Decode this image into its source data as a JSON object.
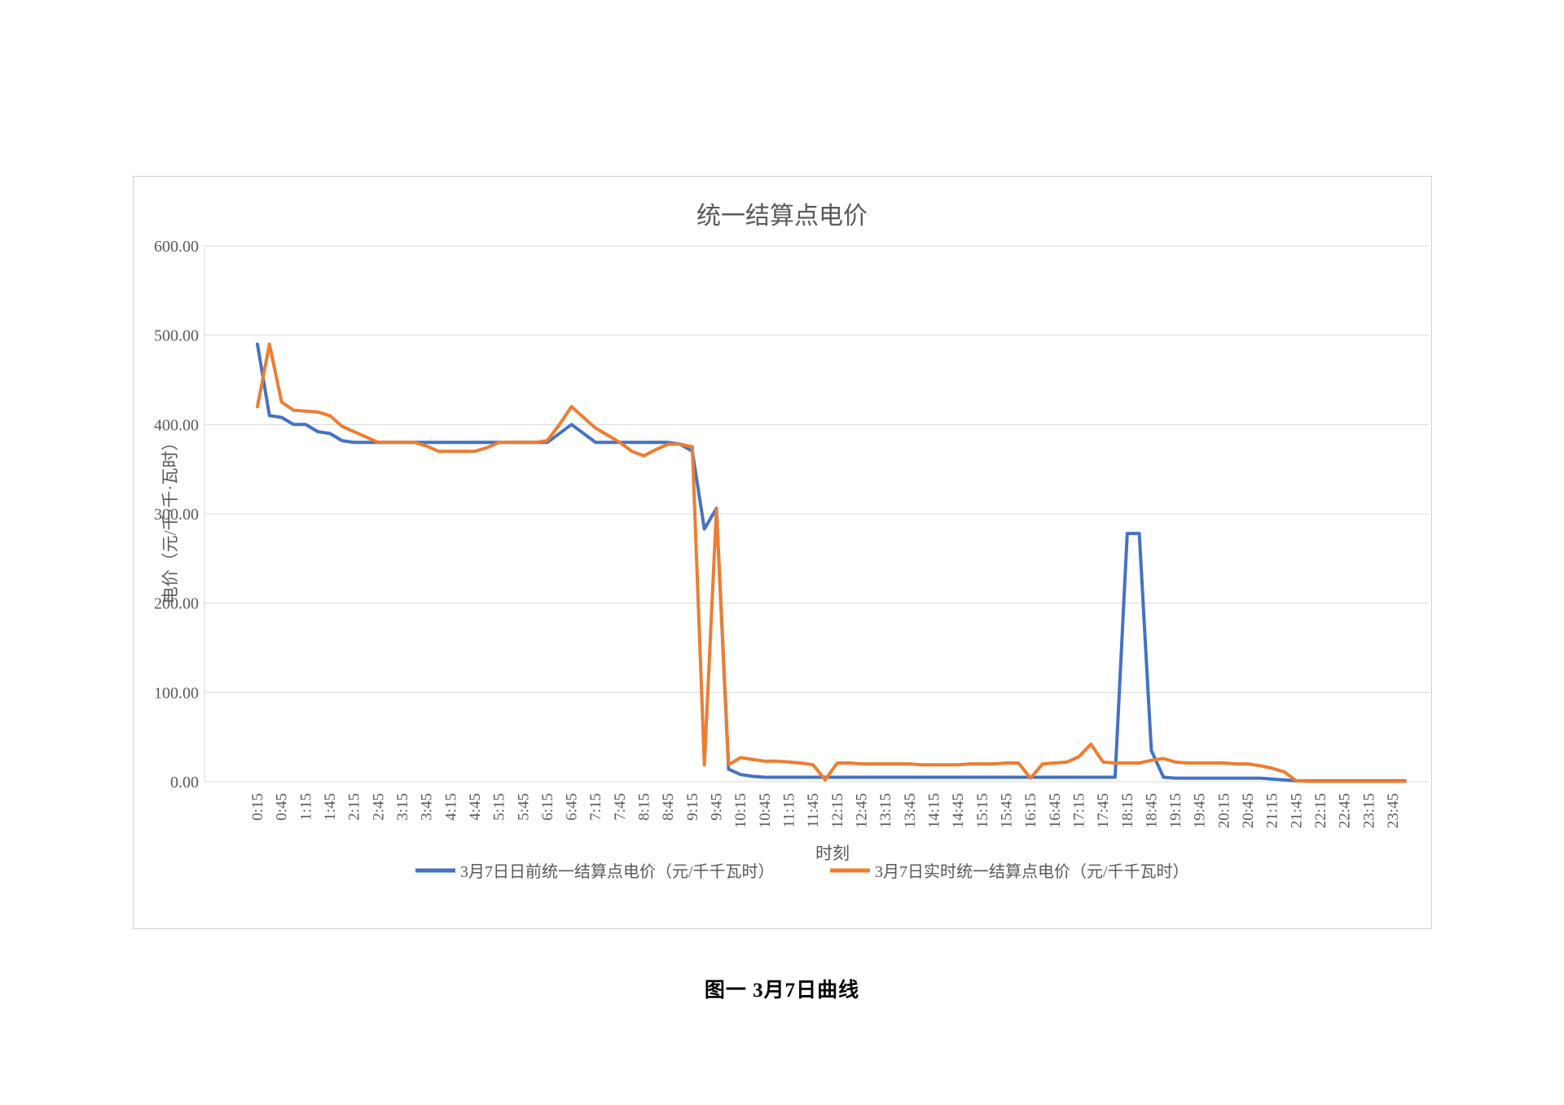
{
  "page": {
    "caption": "图一 3月7日曲线"
  },
  "chart_data": {
    "type": "line",
    "title": "统一结算点电价",
    "xlabel": "时刻",
    "ylabel": "电价（元/千·千·瓦时）",
    "ylim": [
      0,
      600
    ],
    "ytick_step": 100,
    "ytick_decimals": 2,
    "grid": true,
    "legend_position": "bottom",
    "x_tick_every": 2,
    "x": [
      "0:15",
      "0:30",
      "0:45",
      "1:00",
      "1:15",
      "1:30",
      "1:45",
      "2:00",
      "2:15",
      "2:30",
      "2:45",
      "3:00",
      "3:15",
      "3:30",
      "3:45",
      "4:00",
      "4:15",
      "4:30",
      "4:45",
      "5:00",
      "5:15",
      "5:30",
      "5:45",
      "6:00",
      "6:15",
      "6:30",
      "6:45",
      "7:00",
      "7:15",
      "7:30",
      "7:45",
      "8:00",
      "8:15",
      "8:30",
      "8:45",
      "9:00",
      "9:15",
      "9:30",
      "9:45",
      "10:00",
      "10:15",
      "10:30",
      "10:45",
      "11:00",
      "11:15",
      "11:30",
      "11:45",
      "12:00",
      "12:15",
      "12:30",
      "12:45",
      "13:00",
      "13:15",
      "13:30",
      "13:45",
      "14:00",
      "14:15",
      "14:30",
      "14:45",
      "15:00",
      "15:15",
      "15:30",
      "15:45",
      "16:00",
      "16:15",
      "16:30",
      "16:45",
      "17:00",
      "17:15",
      "17:30",
      "17:45",
      "18:00",
      "18:15",
      "18:30",
      "18:45",
      "19:00",
      "19:15",
      "19:30",
      "19:45",
      "20:00",
      "20:15",
      "20:30",
      "20:45",
      "21:00",
      "21:15",
      "21:30",
      "21:45",
      "22:00",
      "22:15",
      "22:30",
      "22:45",
      "23:00",
      "23:15",
      "23:30",
      "23:45",
      "24:00"
    ],
    "series": [
      {
        "name": "3月7日日前统一结算点电价（元/千千瓦时）",
        "color": "#4472C4",
        "values": [
          490,
          410,
          408,
          400,
          400,
          392,
          390,
          382,
          380,
          380,
          380,
          380,
          380,
          380,
          380,
          380,
          380,
          380,
          380,
          380,
          380,
          380,
          380,
          380,
          380,
          390,
          400,
          390,
          380,
          380,
          380,
          380,
          380,
          380,
          380,
          378,
          370,
          283,
          306,
          14,
          8,
          6,
          5,
          5,
          5,
          5,
          5,
          5,
          5,
          5,
          5,
          5,
          5,
          5,
          5,
          5,
          5,
          5,
          5,
          5,
          5,
          5,
          5,
          5,
          5,
          5,
          5,
          5,
          5,
          5,
          5,
          5,
          278,
          278,
          35,
          5,
          4,
          4,
          4,
          4,
          4,
          4,
          4,
          4,
          3,
          2,
          1,
          1,
          1,
          1,
          1,
          1,
          1,
          1,
          1,
          1
        ]
      },
      {
        "name": "3月7日实时统一结算点电价（元/千千瓦时）",
        "color": "#ED7D31",
        "values": [
          420,
          490,
          425,
          416,
          415,
          414,
          410,
          398,
          392,
          386,
          380,
          380,
          380,
          380,
          376,
          370,
          370,
          370,
          370,
          374,
          380,
          380,
          380,
          380,
          382,
          400,
          420,
          408,
          396,
          388,
          380,
          370,
          365,
          372,
          378,
          378,
          375,
          19,
          305,
          19,
          27,
          25,
          23,
          23,
          22,
          21,
          19,
          2,
          21,
          21,
          20,
          20,
          20,
          20,
          20,
          19,
          19,
          19,
          19,
          20,
          20,
          20,
          21,
          21,
          4,
          20,
          21,
          22,
          28,
          42,
          22,
          21,
          21,
          21,
          24,
          26,
          22,
          21,
          21,
          21,
          21,
          20,
          20,
          18,
          15,
          11,
          1,
          0.5,
          0.5,
          0.5,
          0.5,
          0.5,
          0.5,
          0.5,
          0.5,
          0.5
        ]
      }
    ],
    "colors": {
      "grid": "#D9D9D9",
      "axis_line": "#D9D9D9",
      "axis_text": "#595959",
      "title_text": "#595959"
    }
  }
}
